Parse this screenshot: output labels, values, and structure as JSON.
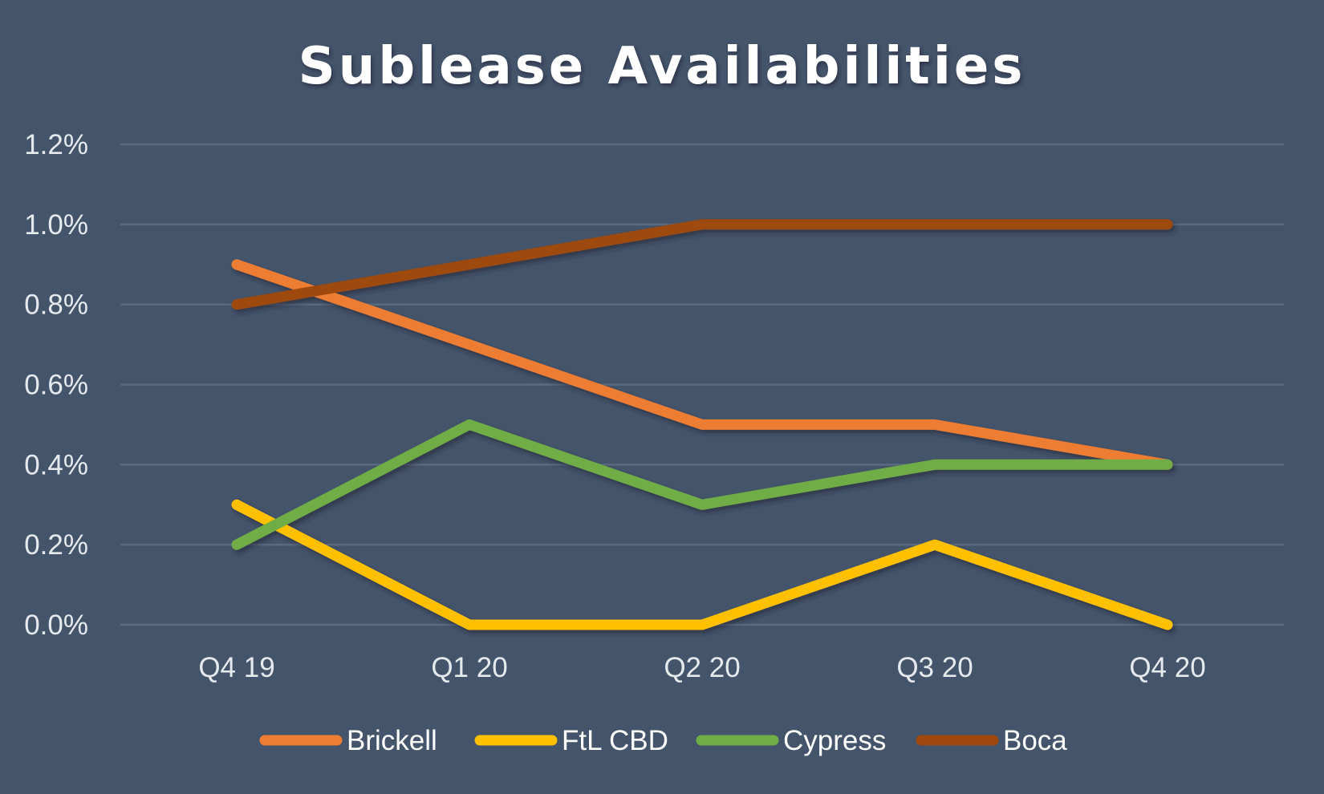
{
  "chart_data": {
    "type": "line",
    "title": "Sublease Availabilities",
    "xlabel": "",
    "ylabel": "",
    "categories": [
      "Q4 19",
      "Q1 20",
      "Q2 20",
      "Q3 20",
      "Q4 20"
    ],
    "y_tick_labels": [
      "0.0%",
      "0.2%",
      "0.4%",
      "0.6%",
      "0.8%",
      "1.0%",
      "1.2%"
    ],
    "y_ticks": [
      0.0,
      0.2,
      0.4,
      0.6,
      0.8,
      1.0,
      1.2
    ],
    "ylim": [
      0.0,
      1.2
    ],
    "grid": true,
    "legend_position": "bottom",
    "series": [
      {
        "name": "Brickell",
        "color": "#ed7d31",
        "values": [
          0.9,
          0.7,
          0.5,
          0.5,
          0.4
        ]
      },
      {
        "name": "FtL CBD",
        "color": "#ffc000",
        "values": [
          0.3,
          0.0,
          0.0,
          0.2,
          0.0
        ]
      },
      {
        "name": "Cypress",
        "color": "#70ad47",
        "values": [
          0.2,
          0.5,
          0.3,
          0.4,
          0.4
        ]
      },
      {
        "name": "Boca",
        "color": "#9e480e",
        "values": [
          0.8,
          0.9,
          1.0,
          1.0,
          1.0
        ]
      }
    ]
  }
}
